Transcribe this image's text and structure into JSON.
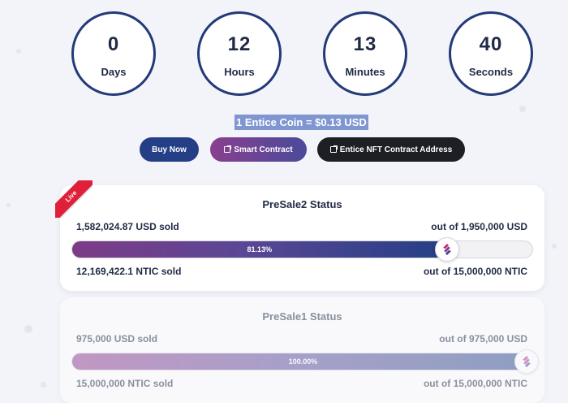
{
  "countdown": {
    "days": {
      "value": "0",
      "label": "Days"
    },
    "hours": {
      "value": "12",
      "label": "Hours"
    },
    "minutes": {
      "value": "13",
      "label": "Minutes"
    },
    "seconds": {
      "value": "40",
      "label": "Seconds"
    }
  },
  "rate_text": "1 Entice Coin = $0.13 USD",
  "buttons": {
    "buy": "Buy Now",
    "smart_contract": "Smart Contract",
    "nft_contract": "Entice NFT Contract Address"
  },
  "presale2": {
    "badge": "Live",
    "title": "PreSale2 Status",
    "usd_sold": "1,582,024.87 USD sold",
    "usd_total": "out of 1,950,000 USD",
    "progress_label": "81.13%",
    "progress_percent": 81.13,
    "ntic_sold": "12,169,422.1 NTIC sold",
    "ntic_total": "out of 15,000,000 NTIC"
  },
  "presale1": {
    "title": "PreSale1 Status",
    "usd_sold": "975,000 USD sold",
    "usd_total": "out of 975,000 USD",
    "progress_label": "100.00%",
    "progress_percent": 100,
    "ntic_sold": "15,000,000 NTIC sold",
    "ntic_total": "out of 15,000,000 NTIC"
  },
  "icons": {
    "external_link": "external-link-icon",
    "coin": "entice-coin-icon"
  },
  "colors": {
    "accent_blue": "#253f86",
    "live_red": "#e0203a",
    "dark_button": "#1d1f24"
  }
}
